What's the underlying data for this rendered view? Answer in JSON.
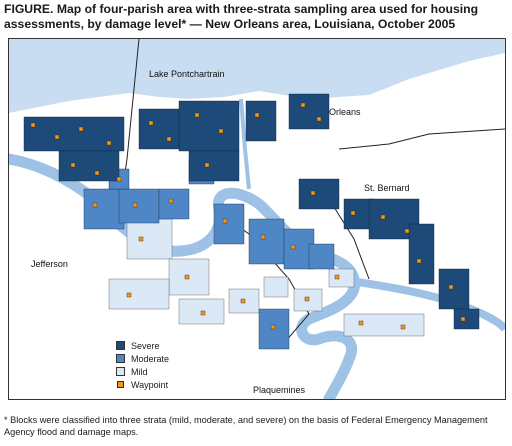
{
  "figure": {
    "title": "FIGURE. Map of four-parish area with three-strata sampling area used for housing assessments, by damage level* — New Orleans area, Louisiana, October 2005",
    "footnote": "* Blocks were classified into three strata (mild, moderate, and severe) on the basis of Federal Emergency Management Agency flood and damage maps."
  },
  "map": {
    "labels": {
      "lake": "Lake Pontchartrain",
      "orleans": "Orleans",
      "st_bernard": "St. Bernard",
      "jefferson": "Jefferson",
      "plaquemines": "Plaquemines"
    },
    "colors": {
      "severe": "#1d4a78",
      "moderate": "#4f86c6",
      "mild": "#dbe8f6",
      "waypoint": "#f0961e",
      "water": "#c9ddf2",
      "river": "#9dc2e6"
    }
  },
  "legend": {
    "severe": "Severe",
    "moderate": "Moderate",
    "mild": "Mild",
    "waypoint": "Waypoint"
  }
}
